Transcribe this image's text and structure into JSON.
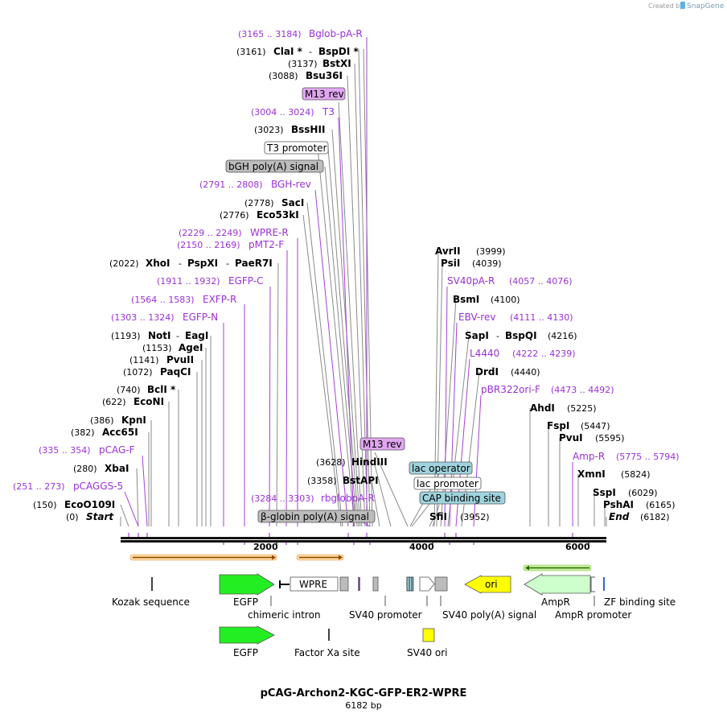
{
  "credit": {
    "created_by": "Created by",
    "app": "SnapGene"
  },
  "title": "pCAG-Archon2-KGC-GFP-ER2-WPRE",
  "length": "6182 bp",
  "axis_ticks": [
    "2000",
    "4000",
    "6000"
  ],
  "colors": {
    "enzyme": "#000000",
    "primer": "#9b30d9",
    "egfp": "#22ee22",
    "ampr": "#ccffcc",
    "ori": "#ffff00",
    "operator": "#9fd3dd",
    "m13": "#e0a6f0",
    "grey_feature": "#bcbcbc",
    "line_grey": "#888888"
  },
  "left_sites": [
    {
      "pos": "(3161)",
      "name": "ClaI *",
      "sep": "-",
      "name2": "BspDI *"
    },
    {
      "pos": "(3137)",
      "name": "BstXI"
    },
    {
      "pos": "(3088)",
      "name": "Bsu36I"
    },
    {
      "pos": "(3023)",
      "name": "BssHII"
    },
    {
      "pos": "(2778)",
      "name": "SacI"
    },
    {
      "pos": "(2776)",
      "name": "Eco53kI"
    },
    {
      "pos": "(2022)",
      "name": "XhoI",
      "sep": "-",
      "name2": "PspXI",
      "sep2": "-",
      "name3": "PaeR7I"
    },
    {
      "pos": "(1193)",
      "name": "NotI",
      "sep": "-",
      "name2": "EagI"
    },
    {
      "pos": "(1153)",
      "name": "AgeI"
    },
    {
      "pos": "(1141)",
      "name": "PvuII"
    },
    {
      "pos": "(1072)",
      "name": "PaqCI"
    },
    {
      "pos": "(740)",
      "name": "BclI *"
    },
    {
      "pos": "(622)",
      "name": "EcoNI"
    },
    {
      "pos": "(386)",
      "name": "KpnI"
    },
    {
      "pos": "(382)",
      "name": "Acc65I"
    },
    {
      "pos": "(280)",
      "name": "XbaI"
    },
    {
      "pos": "(150)",
      "name": "EcoO109I"
    },
    {
      "pos": "(0)",
      "name": "Start"
    },
    {
      "pos": "(3628)",
      "name": "HindIII"
    },
    {
      "pos": "(3358)",
      "name": "BstAPI"
    }
  ],
  "right_sites": [
    {
      "pos": "(3999)",
      "name": "AvrII"
    },
    {
      "pos": "(4039)",
      "name": "PsiI"
    },
    {
      "pos": "(4100)",
      "name": "BsmI"
    },
    {
      "pos": "(4216)",
      "name": "SapI",
      "sep": "-",
      "name2": "BspQI"
    },
    {
      "pos": "(4440)",
      "name": "DrdI"
    },
    {
      "pos": "(5225)",
      "name": "AhdI"
    },
    {
      "pos": "(5447)",
      "name": "FspI"
    },
    {
      "pos": "(5595)",
      "name": "PvuI"
    },
    {
      "pos": "(5824)",
      "name": "XmnI"
    },
    {
      "pos": "(6029)",
      "name": "SspI"
    },
    {
      "pos": "(6165)",
      "name": "PshAI"
    },
    {
      "pos": "(6182)",
      "name": "End"
    },
    {
      "pos": "(3952)",
      "name": "SfiI"
    }
  ],
  "primers": [
    {
      "range": "(3165 .. 3184)",
      "name": "Bglob-pA-R"
    },
    {
      "range": "(3004 .. 3024)",
      "name": "T3"
    },
    {
      "range": "(2791 .. 2808)",
      "name": "BGH-rev"
    },
    {
      "range": "(2229 .. 2249)",
      "name": "WPRE-R"
    },
    {
      "range": "(2150 .. 2169)",
      "name": "pMT2-F"
    },
    {
      "range": "(1911 .. 1932)",
      "name": "EGFP-C"
    },
    {
      "range": "(1564 .. 1583)",
      "name": "EXFP-R"
    },
    {
      "range": "(1303 .. 1324)",
      "name": "EGFP-N"
    },
    {
      "range": "(335 .. 354)",
      "name": "pCAG-F"
    },
    {
      "range": "(251 .. 273)",
      "name": "pCAGGS-5"
    },
    {
      "range": "(3284 .. 3303)",
      "name": "rbglobpA-R"
    },
    {
      "range": "(4057 .. 4076)",
      "name": "SV40pA-R"
    },
    {
      "range": "(4111 .. 4130)",
      "name": "EBV-rev"
    },
    {
      "range": "(4222 .. 4239)",
      "name": "L4440"
    },
    {
      "range": "(4473 .. 4492)",
      "name": "pBR322ori-F"
    },
    {
      "range": "(5775 .. 5794)",
      "name": "Amp-R"
    }
  ],
  "boxed_labels": {
    "m13rev_top": "M13 rev",
    "t3_promoter": "T3 promoter",
    "bgh_polya": "bGH poly(A) signal",
    "m13rev_mid": "M13 rev",
    "lac_operator": "lac operator",
    "lac_promoter": "lac promoter",
    "cap_site": "CAP binding site",
    "bglobin_polya": "β-globin poly(A) signal"
  },
  "features_row1": {
    "wpre": "WPRE",
    "ori": "ori",
    "kozak": "Kozak sequence",
    "egfp": "EGFP",
    "chimeric_intron": "chimeric intron",
    "sv40_promoter": "SV40 promoter",
    "sv40_polya": "SV40 poly(A) signal",
    "ampr": "AmpR",
    "ampr_promoter": "AmpR promoter",
    "zf_site": "ZF binding site"
  },
  "features_row2": {
    "egfp": "EGFP",
    "factor_xa": "Factor Xa site",
    "sv40_ori": "SV40 ori"
  }
}
